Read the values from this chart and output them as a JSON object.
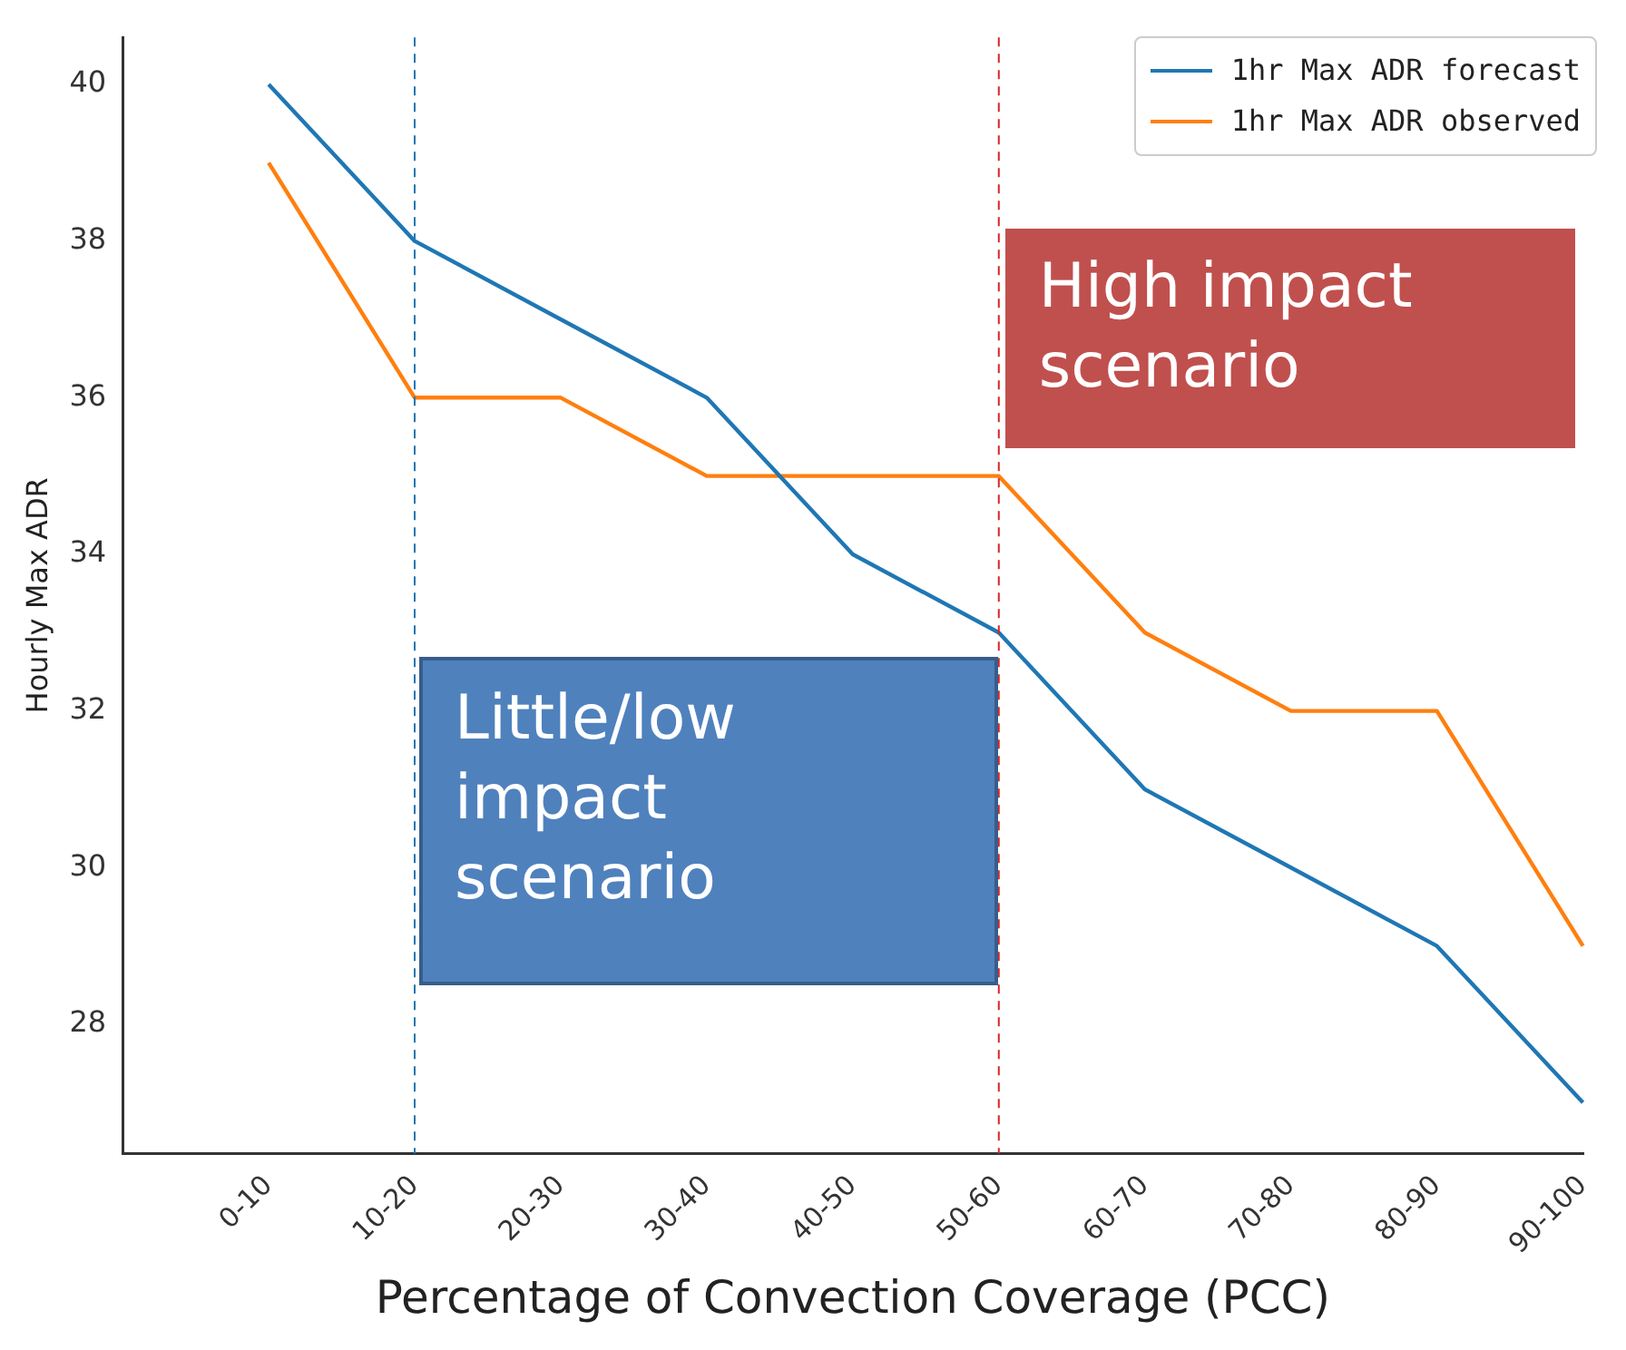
{
  "chart_data": {
    "type": "line",
    "xlabel": "Percentage of Convection Coverage (PCC)",
    "ylabel": "Hourly Max ADR",
    "categories": [
      null,
      "0-10",
      "10-20",
      "20-30",
      "30-40",
      "40-50",
      "50-60",
      "60-70",
      "70-80",
      "80-90",
      "90-100"
    ],
    "series": [
      {
        "name": "1hr Max ADR forecast",
        "color": "#1f77b4",
        "values": [
          null,
          40,
          38,
          37,
          36,
          34,
          33,
          31,
          30,
          29,
          27
        ]
      },
      {
        "name": "1hr Max ADR observed",
        "color": "#ff7f0e",
        "values": [
          null,
          39,
          36,
          36,
          35,
          35,
          35,
          33,
          32,
          32,
          29
        ]
      }
    ],
    "ylim": [
      26.35,
      40.6
    ],
    "yticks": [
      28,
      30,
      32,
      34,
      36,
      38,
      40
    ],
    "ref_lines": [
      {
        "axis": "x",
        "value": "10-20",
        "color": "#1f77b4",
        "line_style": "dashed"
      },
      {
        "axis": "x",
        "value": "50-60",
        "color": "#d62728",
        "line_style": "dashed"
      }
    ],
    "annotations": [
      "Little/low impact scenario",
      "High impact scenario"
    ],
    "grid": false,
    "legend": "top right",
    "marker": "none",
    "line_style": "solid"
  }
}
